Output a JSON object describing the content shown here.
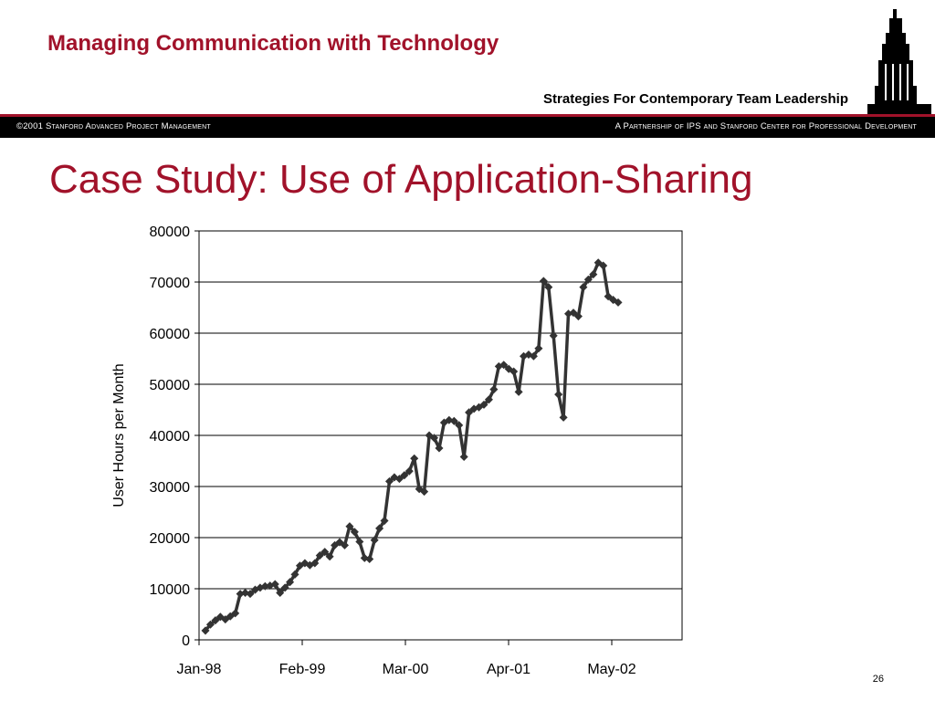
{
  "header": {
    "title": "Managing Communication with Technology",
    "subtitle": "Strategies For Contemporary Team Leadership"
  },
  "bar": {
    "left_text": "©2001 Stanford Advanced Project Management",
    "right_text": "A Partnership of IPS and Stanford Center for Professional Development"
  },
  "slide": {
    "title": "Case Study: Use of Application-Sharing",
    "page_number": "26"
  },
  "colors": {
    "accent": "#a1122a",
    "bar": "#000000",
    "series": "#333333"
  },
  "logo": {
    "icon": "tower-logo-icon"
  },
  "chart_data": {
    "type": "line",
    "title": "",
    "xlabel": "",
    "ylabel": "User Hours per Month",
    "ylim": [
      0,
      80000
    ],
    "yticks": [
      0,
      10000,
      20000,
      30000,
      40000,
      50000,
      60000,
      70000,
      80000
    ],
    "xticks": [
      "Jan-98",
      "Feb-99",
      "Mar-00",
      "Apr-01",
      "May-02"
    ],
    "grid": "horizontal",
    "legend": "none",
    "start_month": "Jan-98",
    "series": [
      {
        "values": [
          1800,
          3000,
          3800,
          4500,
          4000,
          4600,
          5200,
          9000,
          9200,
          9000,
          9800,
          10200,
          10500,
          10600,
          10900,
          9200,
          10200,
          11300,
          12800,
          14500,
          15000,
          14600,
          15000,
          16500,
          17200,
          16300,
          18500,
          19100,
          18500,
          22200,
          21100,
          19200,
          16000,
          15800,
          19500,
          21800,
          23300,
          31000,
          31800,
          31500,
          32200,
          33000,
          35500,
          29500,
          29000,
          40000,
          39500,
          37500,
          42500,
          43000,
          42800,
          42000,
          35800,
          44500,
          45200,
          45500,
          46000,
          47000,
          49000,
          53500,
          53800,
          53000,
          52500,
          48500,
          55500,
          55800,
          55500,
          57000,
          70200,
          69000,
          59500,
          48000,
          43500,
          63800,
          64000,
          63300,
          69000,
          70500,
          71500,
          73800,
          73200,
          67200,
          66500,
          66000
        ]
      }
    ]
  }
}
